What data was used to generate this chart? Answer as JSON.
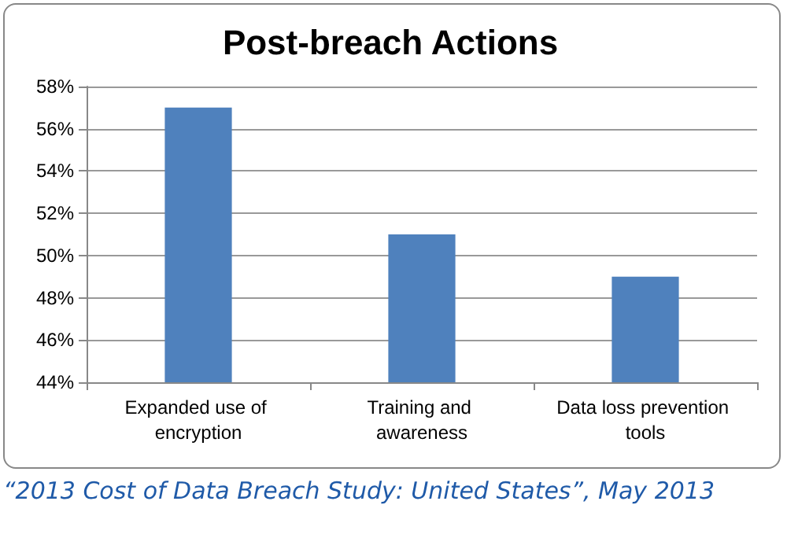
{
  "chart_data": {
    "type": "bar",
    "title": "Post-breach Actions",
    "categories": [
      "Expanded use of encryption",
      "Training and awareness",
      "Data loss prevention tools"
    ],
    "values": [
      57,
      51,
      49
    ],
    "color": "#4f81bd",
    "ylim": [
      44,
      58
    ],
    "yticks": [
      {
        "value": 44,
        "label": "44%"
      },
      {
        "value": 46,
        "label": "46%"
      },
      {
        "value": 48,
        "label": "48%"
      },
      {
        "value": 50,
        "label": "50%"
      },
      {
        "value": 52,
        "label": "52%"
      },
      {
        "value": 54,
        "label": "54%"
      },
      {
        "value": 56,
        "label": "56%"
      },
      {
        "value": 58,
        "label": "58%"
      }
    ],
    "grid": "y",
    "annotations": [
      "“2013 Cost of Data Breach Study: United States”, May 2013"
    ]
  }
}
